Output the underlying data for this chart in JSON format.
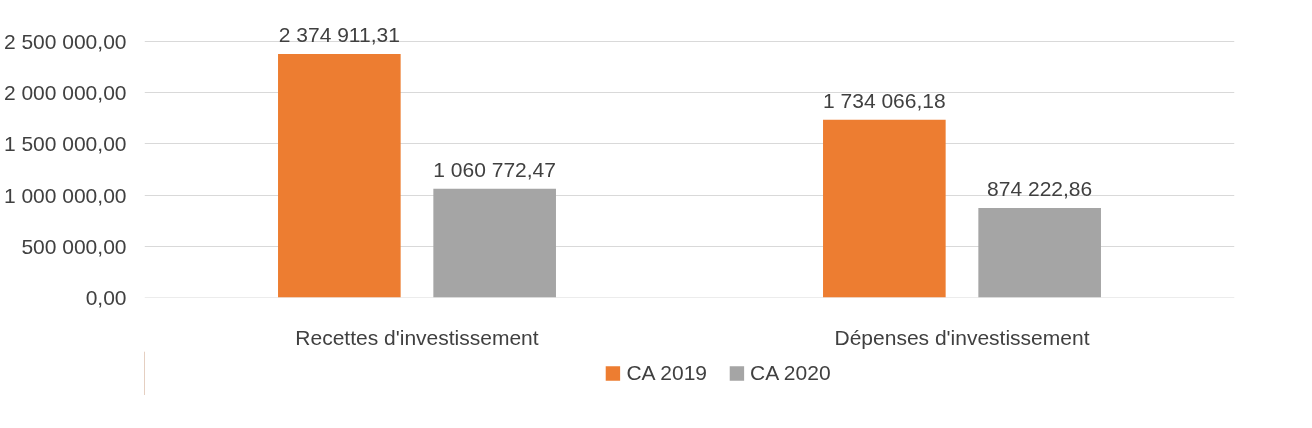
{
  "chart_data": {
    "type": "bar",
    "categories": [
      "Recettes d'investissement",
      "Dépenses d'investissement"
    ],
    "series": [
      {
        "name": "CA 2019",
        "color": "#ed7d31",
        "values": [
          2374911.31,
          1734066.18
        ],
        "value_labels": [
          "2 374 911,31",
          "1 734 066,18"
        ]
      },
      {
        "name": "CA 2020",
        "color": "#a5a5a5",
        "values": [
          1060772.47,
          874222.86
        ],
        "value_labels": [
          "1 060 772,47",
          "874 222,86"
        ]
      }
    ],
    "ylim": [
      0,
      2500000
    ],
    "yticks": [
      {
        "value": 0,
        "label": "0,00"
      },
      {
        "value": 500000,
        "label": "500 000,00"
      },
      {
        "value": 1000000,
        "label": "1 000 000,00"
      },
      {
        "value": 1500000,
        "label": "1 500 000,00"
      },
      {
        "value": 2000000,
        "label": "2 000 000,00"
      },
      {
        "value": 2500000,
        "label": "2 500 000,00"
      }
    ],
    "grid": "y",
    "legend": "bottom"
  }
}
